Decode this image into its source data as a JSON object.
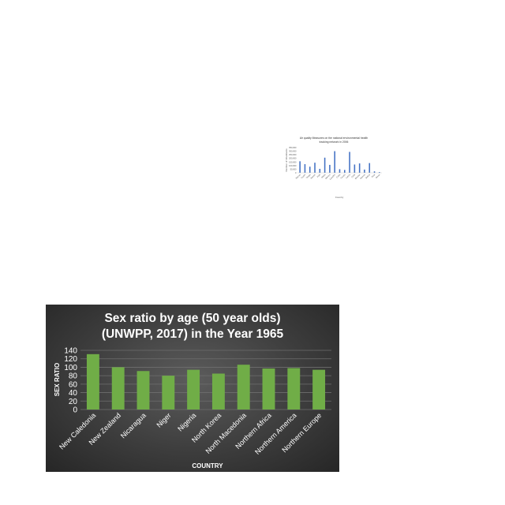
{
  "chart_data": [
    {
      "type": "bar",
      "title": "Air quality Measures on the national environmental health tracking network in 2006",
      "title_lines": [
        "Air quality Measures on the national environmental health",
        "tracking network in 2006"
      ],
      "xlabel": "Country",
      "ylabel": "Number of inhabitants",
      "ylim": [
        0,
        350000
      ],
      "yticks": [
        0,
        50000,
        100000,
        150000,
        200000,
        250000,
        300000,
        350000
      ],
      "ytick_labels": [
        "0",
        "50,000",
        "100,000",
        "150,000",
        "200,000",
        "250,000",
        "300,000",
        "350,000"
      ],
      "categories": [
        "Macao",
        "Guam",
        "Tonga",
        "Yemen",
        "Haiti",
        "Malta",
        "Mexico",
        "Lesotho",
        "Cuba",
        "Tuvalu",
        "Latvia",
        "Chile",
        "Bhutan",
        "Samoa",
        "Belize",
        "Niue",
        "Oman"
      ],
      "values": [
        160000,
        120000,
        85000,
        140000,
        55000,
        210000,
        110000,
        300000,
        50000,
        40000,
        290000,
        115000,
        130000,
        45000,
        135000,
        20000,
        10000
      ],
      "bar_color": "#4472c4",
      "grid": false
    },
    {
      "type": "bar",
      "title": "Sex ratio by age (50 year olds)",
      "title_line2": "(UNWPP, 2017) in the Year 1965",
      "xlabel": "COUNTRY",
      "ylabel": "SEX RATIO",
      "ylim": [
        0,
        140
      ],
      "yticks": [
        0,
        20,
        40,
        60,
        80,
        100,
        120,
        140
      ],
      "categories": [
        "New Caledonia",
        "New Zealand",
        "Nicaragua",
        "Niger",
        "Nigeria",
        "North Korea",
        "North Macedonia",
        "Northern Africa",
        "Northern America",
        "Northern Europe"
      ],
      "values": [
        131,
        100,
        91,
        80,
        94,
        85,
        106,
        97,
        98,
        94
      ],
      "bar_color": "#70ad47",
      "background": "#3d3d3d",
      "grid": true
    }
  ]
}
